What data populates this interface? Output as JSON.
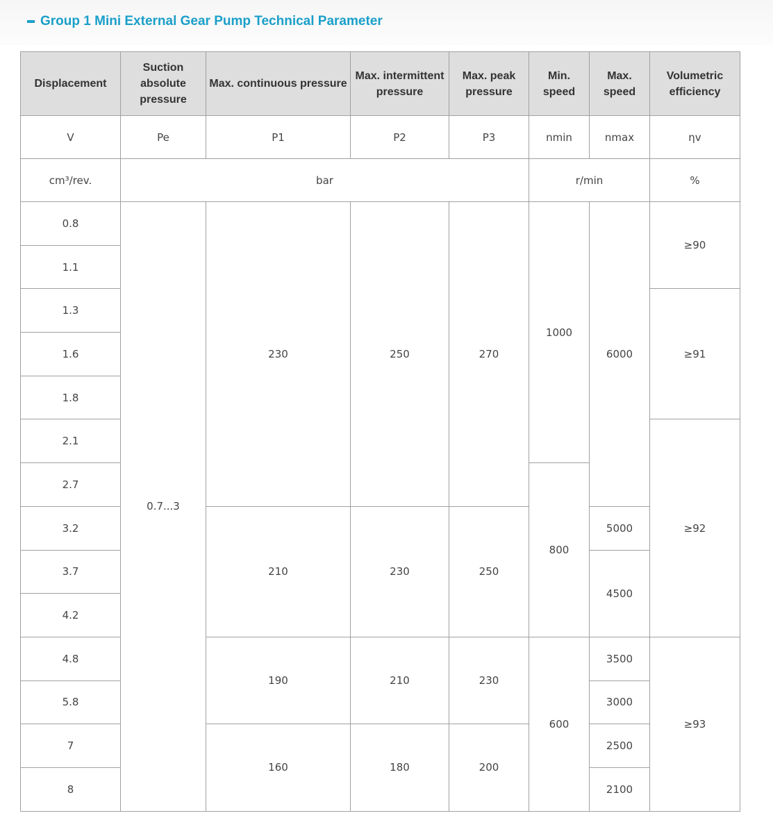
{
  "title": "Group 1 Mini External Gear Pump Technical Parameter",
  "colors": {
    "accent": "#1a9fc9",
    "header_bg": "#dedede",
    "border": "#a0a0a0"
  },
  "headers": [
    "Displacement",
    "Suction absolute pressure",
    "Max. continuous pressure",
    "Max. intermittent pressure",
    "Max. peak pressure",
    "Min. speed",
    "Max. speed",
    "Volumetric efficiency"
  ],
  "symbols": [
    "V",
    "Pe",
    "P1",
    "P2",
    "P3",
    "nmin",
    "nmax",
    "ηv"
  ],
  "units": [
    {
      "value": "cm³/rev.",
      "cols": 1
    },
    {
      "value": "bar",
      "cols": 4
    },
    {
      "value": "r/min",
      "cols": 2
    },
    {
      "value": "%",
      "cols": 1
    }
  ],
  "columns": [
    [
      {
        "value": "0.8",
        "rows": 1
      },
      {
        "value": "1.1",
        "rows": 1
      },
      {
        "value": "1.3",
        "rows": 1
      },
      {
        "value": "1.6",
        "rows": 1
      },
      {
        "value": "1.8",
        "rows": 1
      },
      {
        "value": "2.1",
        "rows": 1
      },
      {
        "value": "2.7",
        "rows": 1
      },
      {
        "value": "3.2",
        "rows": 1
      },
      {
        "value": "3.7",
        "rows": 1
      },
      {
        "value": "4.2",
        "rows": 1
      },
      {
        "value": "4.8",
        "rows": 1
      },
      {
        "value": "5.8",
        "rows": 1
      },
      {
        "value": "7",
        "rows": 1
      },
      {
        "value": "8",
        "rows": 1
      }
    ],
    [
      {
        "value": "0.7...3",
        "rows": 14
      }
    ],
    [
      {
        "value": "230",
        "rows": 7
      },
      {
        "value": "210",
        "rows": 3
      },
      {
        "value": "190",
        "rows": 2
      },
      {
        "value": "160",
        "rows": 2
      }
    ],
    [
      {
        "value": "250",
        "rows": 7
      },
      {
        "value": "230",
        "rows": 3
      },
      {
        "value": "210",
        "rows": 2
      },
      {
        "value": "180",
        "rows": 2
      }
    ],
    [
      {
        "value": "270",
        "rows": 7
      },
      {
        "value": "250",
        "rows": 3
      },
      {
        "value": "230",
        "rows": 2
      },
      {
        "value": "200",
        "rows": 2
      }
    ],
    [
      {
        "value": "1000",
        "rows": 6
      },
      {
        "value": "800",
        "rows": 4
      },
      {
        "value": "600",
        "rows": 4
      }
    ],
    [
      {
        "value": "6000",
        "rows": 7
      },
      {
        "value": "5000",
        "rows": 1
      },
      {
        "value": "4500",
        "rows": 2
      },
      {
        "value": "3500",
        "rows": 1
      },
      {
        "value": "3000",
        "rows": 1
      },
      {
        "value": "2500",
        "rows": 1
      },
      {
        "value": "2100",
        "rows": 1
      }
    ],
    [
      {
        "value": "≥90",
        "rows": 2
      },
      {
        "value": "≥91",
        "rows": 3
      },
      {
        "value": "≥92",
        "rows": 5
      },
      {
        "value": "≥93",
        "rows": 4
      }
    ]
  ]
}
